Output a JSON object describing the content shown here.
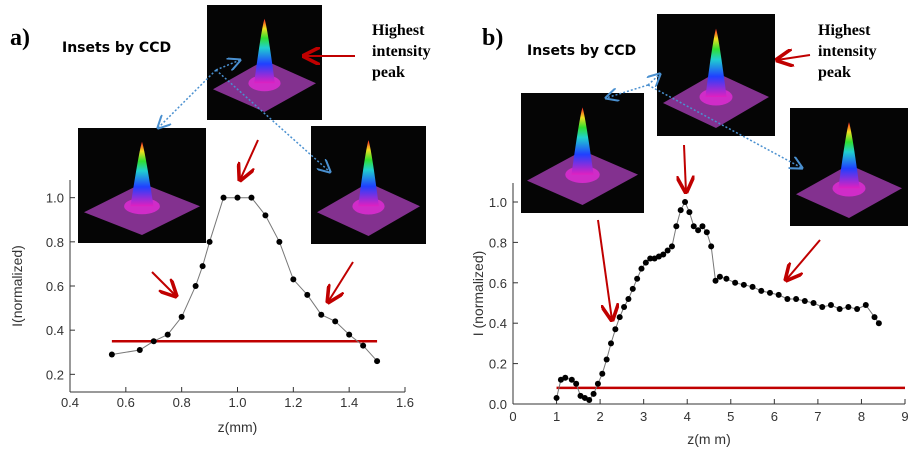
{
  "chart_data": [
    {
      "type": "line",
      "panel_label": "a)",
      "inset_label": "Insets by CCD",
      "peak_label": [
        "Highest",
        "intensity",
        "peak"
      ],
      "x_label": "z(mm)",
      "y_label": "I(normalized)",
      "color": "#000000",
      "x": [
        0.55,
        0.65,
        0.7,
        0.75,
        0.8,
        0.85,
        0.875,
        0.9,
        0.95,
        1.0,
        1.05,
        1.1,
        1.15,
        1.2,
        1.25,
        1.3,
        1.35,
        1.4,
        1.45,
        1.5
      ],
      "values": [
        0.29,
        0.31,
        0.35,
        0.38,
        0.46,
        0.6,
        0.69,
        0.8,
        1.0,
        1.0,
        1.0,
        0.92,
        0.8,
        0.63,
        0.56,
        0.47,
        0.44,
        0.38,
        0.33,
        0.26
      ],
      "threshold": {
        "y": 0.35,
        "x": [
          0.55,
          1.5
        ],
        "color": "#c00000"
      },
      "xlim": [
        0.4,
        1.6
      ],
      "xticks": [
        0.4,
        0.6,
        0.8,
        {
          "value": 1,
          "label": "1.0"
        },
        1.2,
        1.4,
        1.6
      ],
      "ylim": [
        0.12,
        1.08
      ],
      "yticks": [
        0.2,
        0.4,
        0.6,
        0.8,
        {
          "value": 1,
          "label": "1.0"
        }
      ]
    },
    {
      "type": "line",
      "panel_label": "b)",
      "inset_label": "Insets by CCD",
      "peak_label": [
        "Highest",
        "intensity",
        "peak"
      ],
      "x_label": "z(m m)",
      "y_label": "I (normalized)",
      "color": "#000000",
      "x": [
        1.0,
        1.1,
        1.2,
        1.35,
        1.45,
        1.55,
        1.65,
        1.75,
        1.85,
        1.95,
        2.05,
        2.15,
        2.25,
        2.35,
        2.45,
        2.55,
        2.65,
        2.75,
        2.85,
        2.95,
        3.05,
        3.15,
        3.25,
        3.35,
        3.45,
        3.55,
        3.65,
        3.75,
        3.85,
        3.95,
        4.05,
        4.15,
        4.25,
        4.35,
        4.45,
        4.55,
        4.65,
        4.75,
        4.9,
        5.1,
        5.3,
        5.5,
        5.7,
        5.9,
        6.1,
        6.3,
        6.5,
        6.7,
        6.9,
        7.1,
        7.3,
        7.5,
        7.7,
        7.9,
        8.1,
        8.3,
        8.4
      ],
      "values": [
        0.03,
        0.12,
        0.13,
        0.12,
        0.1,
        0.04,
        0.03,
        0.02,
        0.05,
        0.1,
        0.15,
        0.22,
        0.3,
        0.37,
        0.43,
        0.48,
        0.52,
        0.57,
        0.62,
        0.67,
        0.7,
        0.72,
        0.72,
        0.73,
        0.74,
        0.76,
        0.78,
        0.88,
        0.96,
        1.0,
        0.95,
        0.88,
        0.86,
        0.88,
        0.85,
        0.78,
        0.61,
        0.63,
        0.62,
        0.6,
        0.59,
        0.58,
        0.56,
        0.55,
        0.54,
        0.52,
        0.52,
        0.51,
        0.5,
        0.48,
        0.49,
        0.47,
        0.48,
        0.47,
        0.49,
        0.43,
        0.4
      ],
      "threshold": {
        "y": 0.08,
        "x": [
          1,
          9
        ],
        "color": "#c00000"
      },
      "xlim": [
        0,
        9
      ],
      "xticks": [
        0,
        1,
        2,
        3,
        4,
        5,
        6,
        7,
        8,
        9
      ],
      "ylim": [
        0,
        1.094
      ],
      "yticks": [
        {
          "value": 0,
          "label": "0.0"
        },
        0.2,
        0.4,
        0.6,
        0.8,
        {
          "value": 1,
          "label": "1.0"
        }
      ]
    }
  ]
}
